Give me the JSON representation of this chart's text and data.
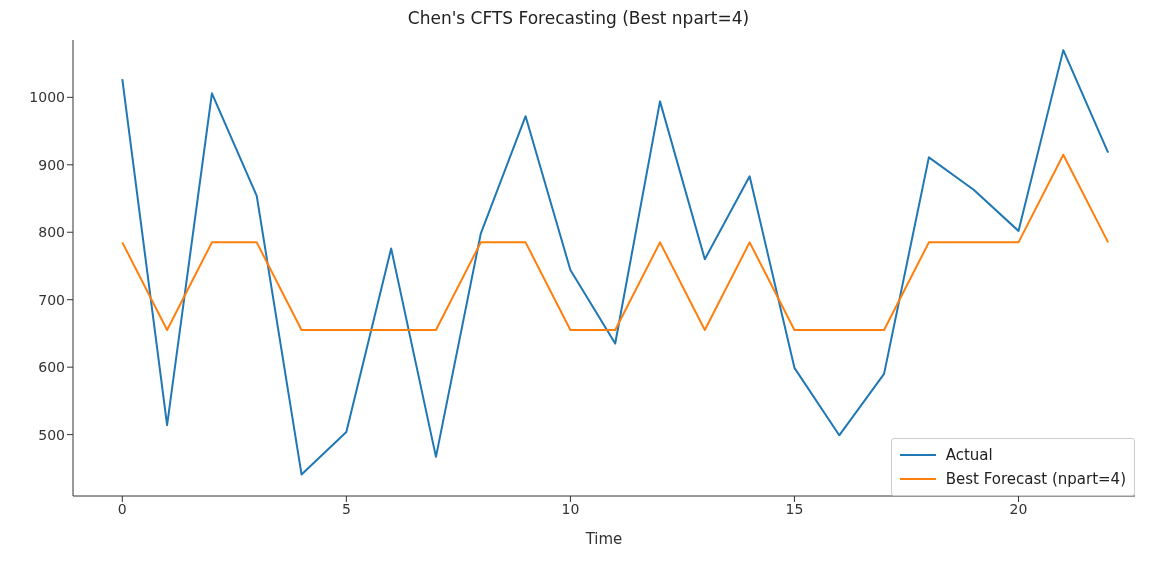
{
  "chart_data": {
    "type": "line",
    "title": "Chen's CFTS Forecasting (Best npart=4)",
    "xlabel": "Time",
    "x": [
      0,
      1,
      2,
      3,
      4,
      5,
      6,
      7,
      8,
      9,
      10,
      11,
      12,
      13,
      14,
      15,
      16,
      17,
      18,
      19,
      20,
      21,
      22
    ],
    "series": [
      {
        "name": "Actual",
        "color": "#1f77b4",
        "values": [
          1027,
          514,
          1006,
          854,
          441,
          504,
          776,
          467,
          798,
          972,
          744,
          635,
          994,
          760,
          883,
          599,
          499,
          590,
          911,
          863,
          802,
          1070,
          918
        ]
      },
      {
        "name": "Best Forecast (npart=4)",
        "color": "#ff7f0e",
        "values": [
          785,
          655,
          785,
          785,
          655,
          655,
          655,
          655,
          785,
          785,
          655,
          655,
          785,
          655,
          785,
          655,
          655,
          655,
          785,
          785,
          785,
          915,
          785
        ]
      }
    ],
    "xlim": [
      -1.1,
      22.6
    ],
    "xticks": [
      0,
      5,
      10,
      15,
      20
    ],
    "ylim": [
      409,
      1085
    ],
    "yticks": [
      500,
      600,
      700,
      800,
      900,
      1000
    ],
    "grid": false,
    "legend": "bottom right"
  }
}
